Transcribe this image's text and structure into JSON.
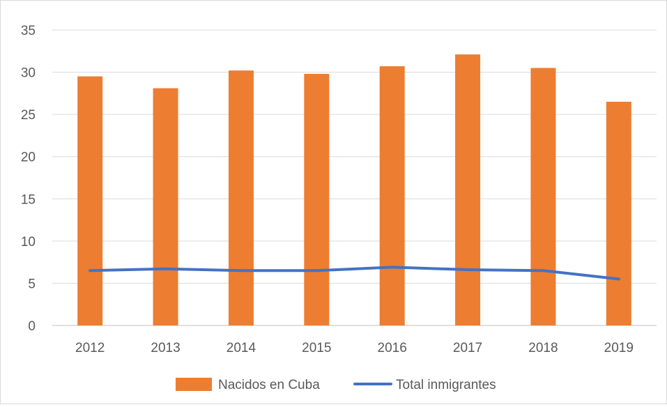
{
  "chart_data": {
    "type": "bar",
    "categories": [
      "2012",
      "2013",
      "2014",
      "2015",
      "2016",
      "2017",
      "2018",
      "2019"
    ],
    "series": [
      {
        "name": "Nacidos en Cuba",
        "type": "bar",
        "color": "#ED7D31",
        "values": [
          29.5,
          28.1,
          30.2,
          29.8,
          30.7,
          32.1,
          30.5,
          26.5
        ]
      },
      {
        "name": "Total inmigrantes",
        "type": "line",
        "color": "#4472C4",
        "values": [
          6.5,
          6.7,
          6.5,
          6.5,
          6.9,
          6.6,
          6.5,
          5.5
        ]
      }
    ],
    "ylim": [
      0,
      35
    ],
    "yticks": [
      "0",
      "5",
      "10",
      "15",
      "20",
      "25",
      "30",
      "35"
    ],
    "title": "",
    "xlabel": "",
    "ylabel": "",
    "grid": true,
    "legend_position": "bottom"
  }
}
